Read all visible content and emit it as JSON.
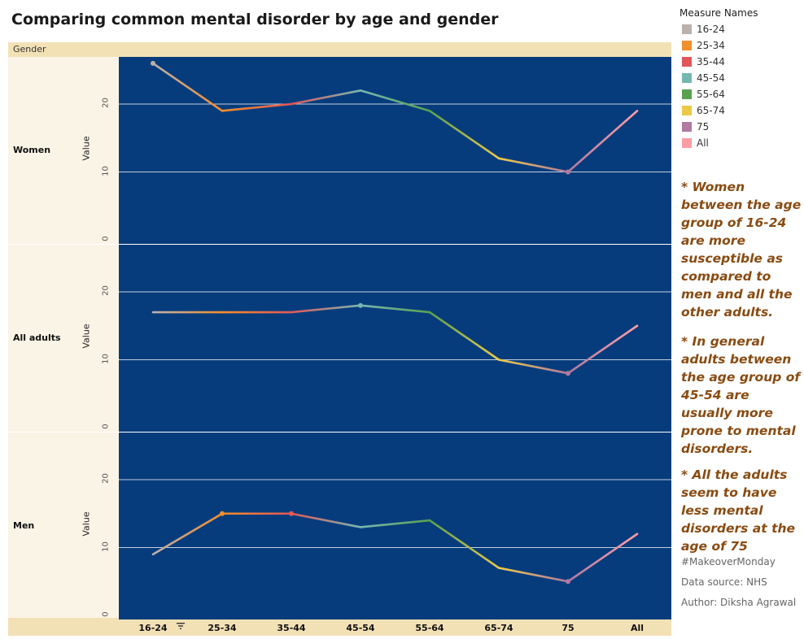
{
  "title": "Comparing common mental disorder by age and gender",
  "header_label": "Gender",
  "value_label": "Value",
  "legend": {
    "title": "Measure Names",
    "items": [
      {
        "label": "16-24",
        "color": "#bab0ac"
      },
      {
        "label": "25-34",
        "color": "#f28e2b"
      },
      {
        "label": "35-44",
        "color": "#e15759"
      },
      {
        "label": "45-54",
        "color": "#76b7b2"
      },
      {
        "label": "55-64",
        "color": "#59a14f"
      },
      {
        "label": "65-74",
        "color": "#edc948"
      },
      {
        "label": "75",
        "color": "#b07aa1"
      },
      {
        "label": "All",
        "color": "#ff9da7"
      }
    ]
  },
  "notes": [
    "* Women between the age group of 16-24 are more susceptible as compared to men and all the other adults.",
    "* In general adults between the age group of 45-54 are usually more prone to mental disorders.",
    "* All the adults seem to have less mental disorders at the age of 75"
  ],
  "credits": [
    "#MakeoverMonday",
    "Data source: NHS",
    "Author: Diksha Agrawal"
  ],
  "colors": {
    "plot_bg": "#073c7c",
    "grid": "#ffffff"
  },
  "chart_data": {
    "type": "line",
    "categories": [
      "16-24",
      "25-34",
      "35-44",
      "45-54",
      "55-64",
      "65-74",
      "75",
      "All"
    ],
    "ylim": [
      0,
      26
    ],
    "yticks": [
      "0",
      "10",
      "20"
    ],
    "series": [
      {
        "name": "Women",
        "values": [
          26,
          19,
          20,
          22,
          19,
          12,
          10,
          19
        ],
        "labels": [
          {
            "index": 0,
            "text": "26.00",
            "position": "left"
          },
          {
            "index": 6,
            "text": "10.00",
            "position": "below"
          }
        ]
      },
      {
        "name": "All adults",
        "values": [
          17,
          17,
          17,
          18,
          17,
          10,
          8,
          15
        ],
        "labels": [
          {
            "index": 3,
            "text": "18.00",
            "position": "above"
          },
          {
            "index": 6,
            "text": "8.00",
            "position": "below"
          }
        ]
      },
      {
        "name": "Men",
        "values": [
          9,
          15,
          15,
          13,
          14,
          7,
          5,
          12
        ],
        "labels": [
          {
            "index": 1,
            "text": "15.00",
            "position": "above"
          },
          {
            "index": 2,
            "text": "15.00",
            "position": "above"
          },
          {
            "index": 6,
            "text": "5.00",
            "position": "below"
          }
        ]
      }
    ]
  }
}
